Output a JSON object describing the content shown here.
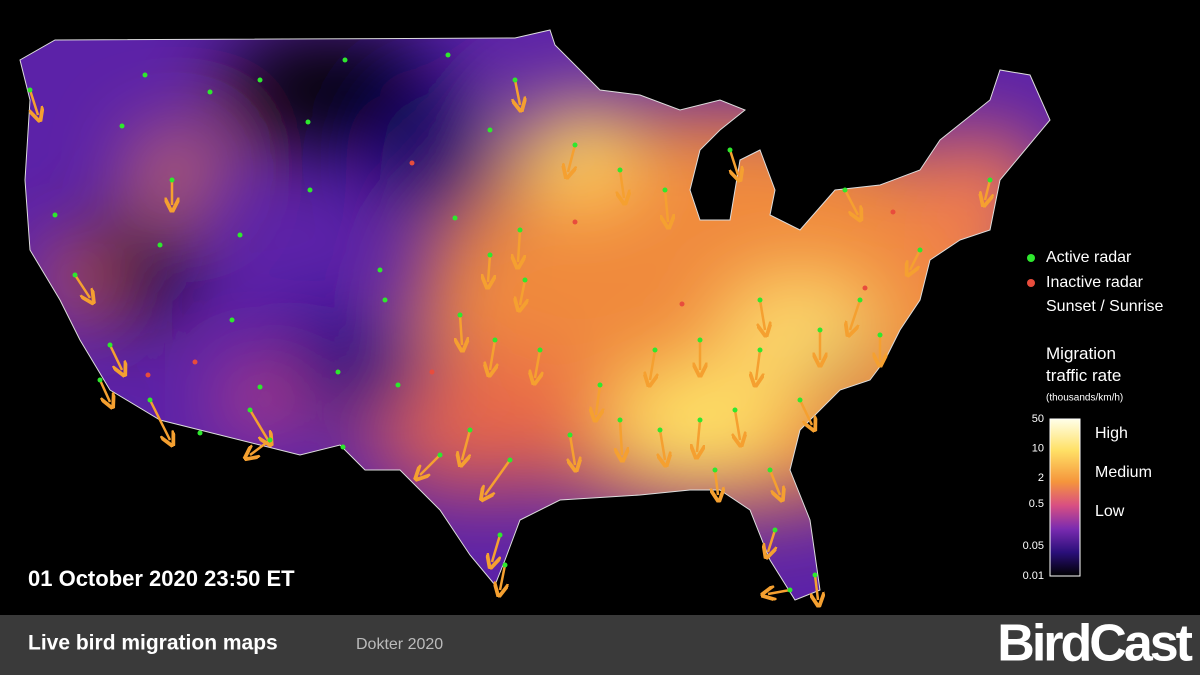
{
  "map": {
    "timestamp": "01 October 2020 23:50 ET"
  },
  "legend": {
    "items": [
      "Active radar",
      "Inactive radar",
      "Sunset / Sunrise"
    ]
  },
  "colorbar": {
    "title": "Migration traffic rate",
    "unit": "(thousands/km/h)",
    "scale": "log",
    "ticks": [
      50,
      10,
      2,
      0.5,
      0.05,
      0.01
    ],
    "levels": [
      "High",
      "Medium",
      "Low"
    ]
  },
  "footer": {
    "title": "Live bird migration maps",
    "credit": "Dokter 2020",
    "logo": "BirdCast"
  }
}
